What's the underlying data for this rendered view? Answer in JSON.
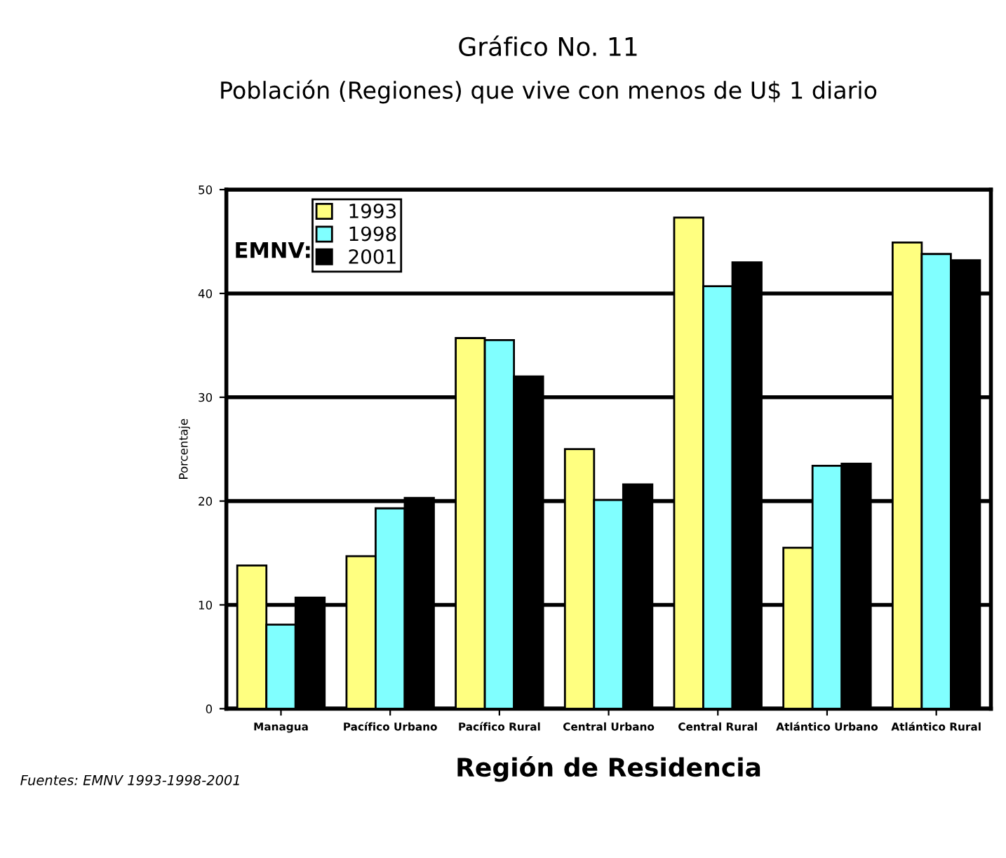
{
  "chart_data": {
    "type": "bar",
    "title": "Gráfico No. 11",
    "subtitle": "Población (Regiones) que vive con menos de U$ 1 diario",
    "xlabel": "Región de Residencia",
    "ylabel": "Porcentaje",
    "legend_title": "EMNV:",
    "categories": [
      "Managua",
      "Pacífico Urbano",
      "Pacífico Rural",
      "Central Urbano",
      "Central Rural",
      "Atlántico Urbano",
      "Atlántico Rural"
    ],
    "series": [
      {
        "name": "1993",
        "color": "#ffff80",
        "values": [
          13.8,
          14.7,
          35.7,
          25.0,
          47.3,
          15.5,
          44.9
        ]
      },
      {
        "name": "1998",
        "color": "#80ffff",
        "values": [
          8.1,
          19.3,
          35.5,
          20.1,
          40.7,
          23.4,
          43.8
        ]
      },
      {
        "name": "2001",
        "color": "#000000",
        "values": [
          10.7,
          20.3,
          32.0,
          21.6,
          43.0,
          23.6,
          43.2
        ]
      }
    ],
    "ylim": [
      0,
      50
    ],
    "yticks": [
      0,
      10,
      20,
      30,
      40,
      50
    ],
    "grid": "y",
    "legend": "top left",
    "annotations": [
      "Fuentes: EMNV 1993-1998-2001"
    ]
  }
}
